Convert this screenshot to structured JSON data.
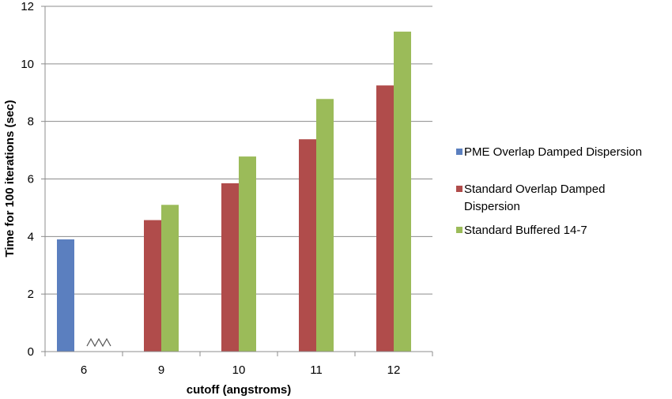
{
  "chart_data": {
    "type": "bar",
    "categories": [
      "6",
      "9",
      "10",
      "11",
      "12"
    ],
    "series": [
      {
        "name": "PME Overlap Damped Dispersion",
        "color": "#5B7FBF",
        "values": [
          3.9,
          null,
          null,
          null,
          null
        ]
      },
      {
        "name": "Standard Overlap Damped Dispersion",
        "color": "#B04C4B",
        "values": [
          null,
          4.57,
          5.85,
          7.38,
          9.25
        ]
      },
      {
        "name": "Standard Buffered 14-7",
        "color": "#9BBB59",
        "values": [
          null,
          5.1,
          6.78,
          8.78,
          11.12
        ]
      }
    ],
    "xlabel": "cutoff (angstroms)",
    "ylabel": "Time for 100 iterations (sec)",
    "ylim": [
      0,
      12
    ],
    "yticks": [
      0,
      2,
      4,
      6,
      8,
      10,
      12
    ],
    "grid": true,
    "legend_position": "right",
    "axis_break_after_category": "6"
  }
}
